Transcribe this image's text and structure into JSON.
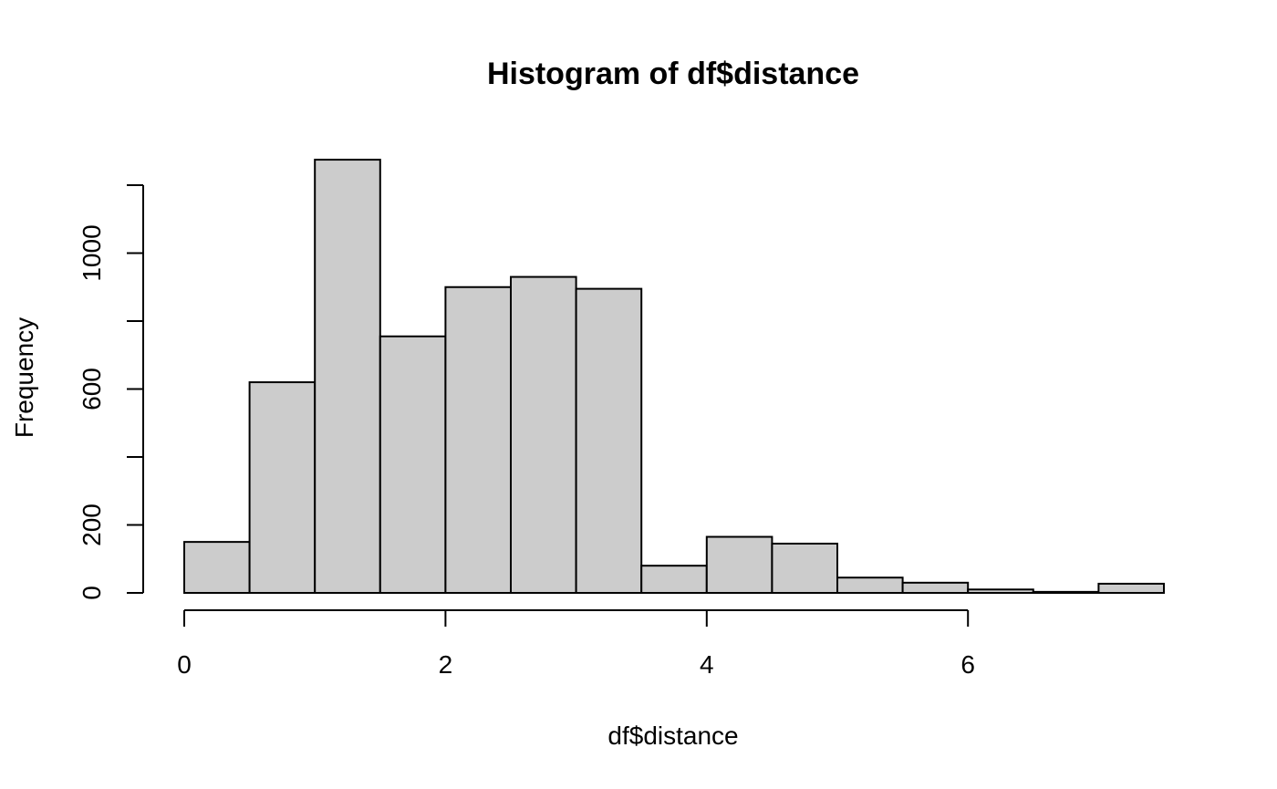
{
  "chart_data": {
    "type": "bar",
    "title": "Histogram of df$distance",
    "xlabel": "df$distance",
    "ylabel": "Frequency",
    "bin_edges": [
      0,
      0.5,
      1,
      1.5,
      2,
      2.5,
      3,
      3.5,
      4,
      4.5,
      5,
      5.5,
      6,
      6.5,
      7,
      7.5
    ],
    "values": [
      150,
      620,
      1275,
      755,
      900,
      930,
      895,
      80,
      165,
      145,
      45,
      30,
      10,
      3,
      27
    ],
    "xlim": [
      0,
      7.5
    ],
    "ylim": [
      0,
      1200
    ],
    "x_ticks": [
      0,
      2,
      4,
      6
    ],
    "x_tick_labels": [
      "0",
      "2",
      "4",
      "6"
    ],
    "y_ticks": [
      0,
      200,
      400,
      600,
      800,
      1000,
      1200
    ],
    "y_tick_labels": [
      "0",
      "200",
      "",
      "600",
      "",
      "1000",
      ""
    ],
    "grid": false,
    "legend": "none",
    "bar_fill": "#cccccc",
    "bar_stroke": "#000000"
  }
}
